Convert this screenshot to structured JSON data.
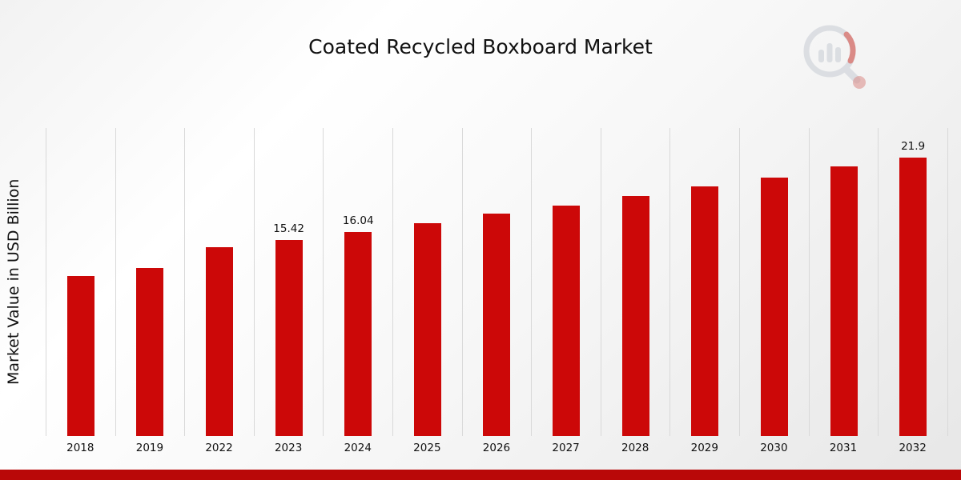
{
  "title": "Coated Recycled Boxboard Market",
  "ylabel": "Market Value in USD Billion",
  "colors": {
    "bar": "#cc0808",
    "footer": "#b90808",
    "gridline": "#d9d9d9",
    "logo_gray": "#c7ccd4",
    "logo_red": "#c5352e"
  },
  "logo_name": "magnifier-bar-chart-logo",
  "chart_data": {
    "type": "bar",
    "title": "Coated Recycled Boxboard Market",
    "xlabel": "",
    "ylabel": "Market Value in USD Billion",
    "categories": [
      "2018",
      "2019",
      "2022",
      "2023",
      "2024",
      "2025",
      "2026",
      "2027",
      "2028",
      "2029",
      "2030",
      "2031",
      "2032"
    ],
    "values": [
      12.56,
      13.19,
      14.82,
      15.42,
      16.04,
      16.7,
      17.46,
      18.09,
      18.84,
      19.6,
      20.29,
      21.17,
      21.9
    ],
    "data_labels": [
      "",
      "",
      "",
      "15.42",
      "16.04",
      "",
      "",
      "",
      "",
      "",
      "",
      "",
      "21.9"
    ],
    "ylim": [
      0,
      24.2
    ],
    "grid": "vertical",
    "legend": "none"
  }
}
